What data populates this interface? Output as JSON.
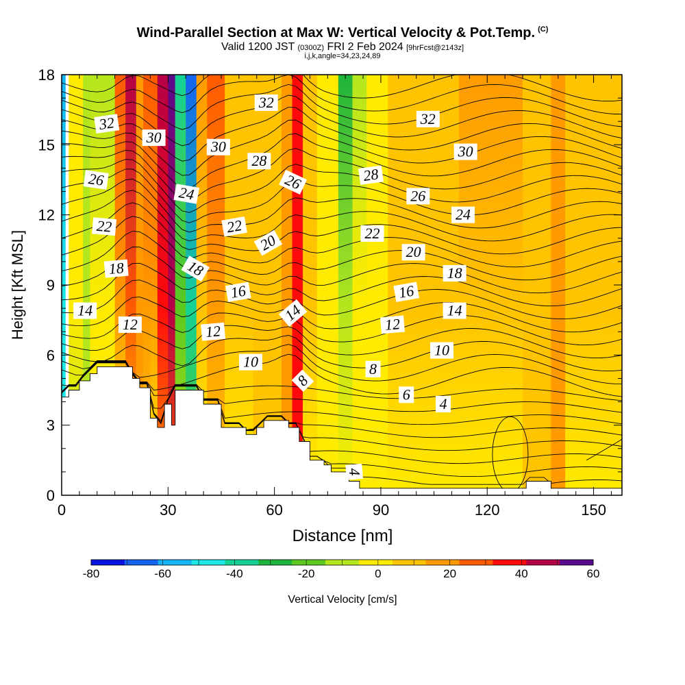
{
  "header": {
    "title": "Wind-Parallel Section at Max W: Vertical Velocity & Pot.Temp.",
    "copyright": "(C)",
    "valid_prefix": "Valid 1200 JST",
    "valid_utc": "(0300Z)",
    "valid_date": "FRI 2 Feb 2024",
    "forecast": "[9hrFcst@2143z]",
    "indices": "i,j,k,angle=34,23,24,89"
  },
  "chart_data": {
    "type": "heatmap",
    "title": "Wind-Parallel Section at Max W: Vertical Velocity & Pot.Temp.",
    "xlabel": "Distance [nm]",
    "ylabel": "Height [Kft MSL]",
    "xlim": [
      0,
      158
    ],
    "ylim": [
      0,
      18
    ],
    "xticks": [
      0,
      30,
      60,
      90,
      120,
      150
    ],
    "yticks": [
      0,
      3,
      6,
      9,
      12,
      15,
      18
    ],
    "grid": false,
    "colorbar": {
      "label": "Vertical Velocity [cm/s]",
      "placement": "bottom",
      "tick_values": [
        -80,
        -60,
        -40,
        -20,
        0,
        20,
        40,
        60
      ],
      "levels": [
        -80,
        -70,
        -60,
        -50,
        -40,
        -30,
        -20,
        -10,
        0,
        10,
        20,
        30,
        40,
        50,
        60
      ],
      "colors": [
        "#0a14e0",
        "#1464f0",
        "#14b4f5",
        "#1ee6e6",
        "#14d296",
        "#1eb43c",
        "#5ac81e",
        "#b4e61e",
        "#ffeb00",
        "#ffc300",
        "#ff9b00",
        "#ff5a00",
        "#ff0a0a",
        "#b40046",
        "#5a0a8c"
      ]
    },
    "vertical_velocity_columns": [
      {
        "x": 0,
        "w": 1,
        "top": 2,
        "bottom": 3
      },
      {
        "x": 2,
        "w": 4,
        "top": 8,
        "bottom": 7
      },
      {
        "x": 6,
        "w": 2,
        "top": 7,
        "bottom": 7
      },
      {
        "x": 8,
        "w": 7,
        "top": 7,
        "bottom": 8
      },
      {
        "x": 15,
        "w": 3,
        "top": 11,
        "bottom": 8
      },
      {
        "x": 18,
        "w": 3,
        "top": 13,
        "bottom": 9
      },
      {
        "x": 21,
        "w": 2,
        "top": 10,
        "bottom": 10
      },
      {
        "x": 23,
        "w": 2,
        "top": 11,
        "bottom": 9
      },
      {
        "x": 25,
        "w": 2,
        "top": 11,
        "bottom": 8
      },
      {
        "x": 27,
        "w": 3,
        "top": 13,
        "bottom": 10
      },
      {
        "x": 30,
        "w": 2,
        "top": 14,
        "bottom": 11
      },
      {
        "x": 32,
        "w": 3,
        "top": 4,
        "bottom": 7
      },
      {
        "x": 35,
        "w": 3,
        "top": 1,
        "bottom": 6
      },
      {
        "x": 38,
        "w": 3,
        "top": 10,
        "bottom": 8
      },
      {
        "x": 41,
        "w": 5,
        "top": 11,
        "bottom": 9
      },
      {
        "x": 46,
        "w": 8,
        "top": 9,
        "bottom": 8
      },
      {
        "x": 54,
        "w": 8,
        "top": 9,
        "bottom": 9
      },
      {
        "x": 62,
        "w": 3,
        "top": 10,
        "bottom": 10
      },
      {
        "x": 65,
        "w": 3,
        "top": 12,
        "bottom": 12
      },
      {
        "x": 68,
        "w": 4,
        "top": 9,
        "bottom": 8
      },
      {
        "x": 72,
        "w": 6,
        "top": 8,
        "bottom": 8
      },
      {
        "x": 78,
        "w": 4,
        "top": 5,
        "bottom": 8
      },
      {
        "x": 82,
        "w": 4,
        "top": 7,
        "bottom": 8
      },
      {
        "x": 86,
        "w": 6,
        "top": 8,
        "bottom": 8
      },
      {
        "x": 92,
        "w": 10,
        "top": 9,
        "bottom": 8
      },
      {
        "x": 102,
        "w": 10,
        "top": 9,
        "bottom": 8
      },
      {
        "x": 112,
        "w": 10,
        "top": 10,
        "bottom": 8
      },
      {
        "x": 122,
        "w": 8,
        "top": 10,
        "bottom": 8
      },
      {
        "x": 130,
        "w": 8,
        "top": 9,
        "bottom": 9
      },
      {
        "x": 138,
        "w": 4,
        "top": 10,
        "bottom": 10
      },
      {
        "x": 142,
        "w": 8,
        "top": 9,
        "bottom": 8
      },
      {
        "x": 150,
        "w": 8,
        "top": 9,
        "bottom": 8
      }
    ],
    "terrain": [
      [
        0,
        4.2
      ],
      [
        2,
        4.2
      ],
      [
        2,
        4.5
      ],
      [
        5,
        4.5
      ],
      [
        5,
        4.9
      ],
      [
        8,
        4.9
      ],
      [
        8,
        5.2
      ],
      [
        10,
        5.2
      ],
      [
        10,
        5.5
      ],
      [
        20,
        5.5
      ],
      [
        20,
        5.0
      ],
      [
        22,
        5.0
      ],
      [
        22,
        4.6
      ],
      [
        25,
        4.6
      ],
      [
        25,
        3.3
      ],
      [
        27,
        3.3
      ],
      [
        27,
        2.9
      ],
      [
        29,
        2.9
      ],
      [
        29,
        3.9
      ],
      [
        31,
        3.9
      ],
      [
        31,
        3.0
      ],
      [
        32,
        3.0
      ],
      [
        32,
        4.5
      ],
      [
        40,
        4.5
      ],
      [
        40,
        3.9
      ],
      [
        45,
        3.9
      ],
      [
        45,
        2.9
      ],
      [
        52,
        2.9
      ],
      [
        52,
        2.6
      ],
      [
        55,
        2.6
      ],
      [
        55,
        2.9
      ],
      [
        57,
        2.9
      ],
      [
        57,
        3.2
      ],
      [
        64,
        3.2
      ],
      [
        64,
        2.9
      ],
      [
        67,
        2.9
      ],
      [
        67,
        2.3
      ],
      [
        70,
        2.3
      ],
      [
        70,
        1.5
      ],
      [
        74,
        1.5
      ],
      [
        74,
        1.3
      ],
      [
        76,
        1.3
      ],
      [
        76,
        1.0
      ],
      [
        81,
        1.0
      ],
      [
        81,
        0.6
      ],
      [
        84,
        0.6
      ],
      [
        84,
        0.3
      ],
      [
        131,
        0.3
      ],
      [
        131,
        0.6
      ],
      [
        138,
        0.6
      ],
      [
        138,
        0.3
      ],
      [
        158,
        0.3
      ],
      [
        158,
        0
      ],
      [
        0,
        0
      ]
    ],
    "theta_contours": {
      "min": 1,
      "max": 32,
      "step": 1
    },
    "theta_labels": [
      {
        "text": "32",
        "x": 12.7,
        "y": 15.9,
        "angle": -8
      },
      {
        "text": "30",
        "x": 26,
        "y": 15.3,
        "angle": 0
      },
      {
        "text": "30",
        "x": 44.2,
        "y": 14.9,
        "angle": 0
      },
      {
        "text": "32",
        "x": 57.7,
        "y": 16.8,
        "angle": 0
      },
      {
        "text": "28",
        "x": 55.7,
        "y": 14.3,
        "angle": 0
      },
      {
        "text": "26",
        "x": 9.7,
        "y": 13.5,
        "angle": 8
      },
      {
        "text": "24",
        "x": 35.2,
        "y": 12.9,
        "angle": 10
      },
      {
        "text": "22",
        "x": 12,
        "y": 11.5,
        "angle": 5
      },
      {
        "text": "22",
        "x": 48.7,
        "y": 11.5,
        "angle": -10
      },
      {
        "text": "26",
        "x": 65.2,
        "y": 13.4,
        "angle": 25
      },
      {
        "text": "28",
        "x": 87.2,
        "y": 13.7,
        "angle": -8
      },
      {
        "text": "32",
        "x": 103.3,
        "y": 16.1,
        "angle": 0
      },
      {
        "text": "30",
        "x": 113.9,
        "y": 14.7,
        "angle": 0
      },
      {
        "text": "26",
        "x": 100.5,
        "y": 12.8,
        "angle": 0
      },
      {
        "text": "24",
        "x": 113.2,
        "y": 12.0,
        "angle": 0
      },
      {
        "text": "20",
        "x": 58.2,
        "y": 10.8,
        "angle": -30
      },
      {
        "text": "22",
        "x": 87.6,
        "y": 11.2,
        "angle": 0
      },
      {
        "text": "20",
        "x": 99.2,
        "y": 10.4,
        "angle": 0
      },
      {
        "text": "18",
        "x": 15.4,
        "y": 9.7,
        "angle": -5
      },
      {
        "text": "18",
        "x": 37.7,
        "y": 9.7,
        "angle": 30
      },
      {
        "text": "16",
        "x": 49.8,
        "y": 8.7,
        "angle": -10
      },
      {
        "text": "18",
        "x": 110.8,
        "y": 9.5,
        "angle": 0
      },
      {
        "text": "16",
        "x": 97.2,
        "y": 8.7,
        "angle": -10
      },
      {
        "text": "14",
        "x": 6.6,
        "y": 7.9,
        "angle": 0
      },
      {
        "text": "14",
        "x": 65.2,
        "y": 7.8,
        "angle": -40
      },
      {
        "text": "14",
        "x": 110.8,
        "y": 7.9,
        "angle": 0
      },
      {
        "text": "12",
        "x": 19.3,
        "y": 7.3,
        "angle": 0
      },
      {
        "text": "12",
        "x": 42.7,
        "y": 7.0,
        "angle": -5
      },
      {
        "text": "12",
        "x": 93.3,
        "y": 7.3,
        "angle": -5
      },
      {
        "text": "10",
        "x": 53.3,
        "y": 5.7,
        "angle": 0
      },
      {
        "text": "10",
        "x": 107.2,
        "y": 6.2,
        "angle": 0
      },
      {
        "text": "8",
        "x": 87.8,
        "y": 5.4,
        "angle": 0
      },
      {
        "text": "8",
        "x": 68,
        "y": 4.9,
        "angle": -45
      },
      {
        "text": "6",
        "x": 97.2,
        "y": 4.3,
        "angle": 0
      },
      {
        "text": "4",
        "x": 107.6,
        "y": 3.9,
        "angle": 0
      },
      {
        "text": "4",
        "x": 82.5,
        "y": 1.0,
        "angle": 85
      }
    ]
  }
}
